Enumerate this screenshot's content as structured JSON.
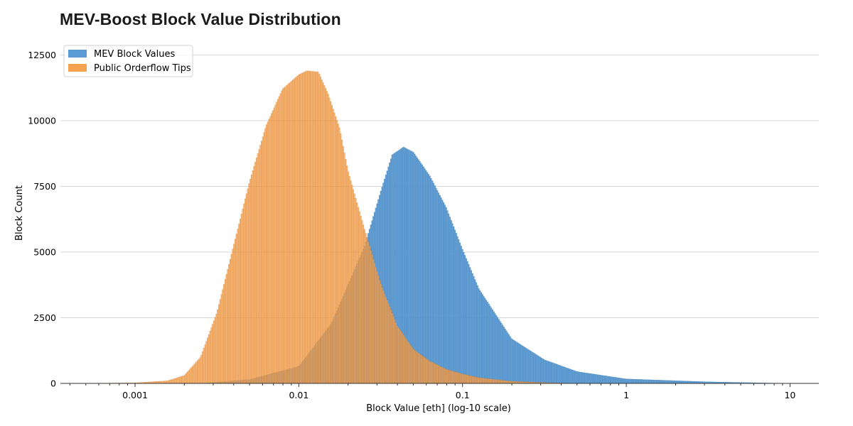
{
  "chart_data": {
    "type": "histogram",
    "title": "MEV-Boost Block Value Distribution",
    "xlabel": "Block Value [eth] (log-10 scale)",
    "ylabel": "Block Count",
    "xscale": "log10",
    "xlim": [
      0.00035,
      15
    ],
    "ylim": [
      0,
      12700
    ],
    "x_ticks": [
      {
        "value": 0.001,
        "label": "0.001"
      },
      {
        "value": 0.01,
        "label": "0.01"
      },
      {
        "value": 0.1,
        "label": "0.1"
      },
      {
        "value": 1,
        "label": "1"
      },
      {
        "value": 10,
        "label": "10"
      }
    ],
    "y_ticks": [
      {
        "value": 0,
        "label": "0"
      },
      {
        "value": 2500,
        "label": "2500"
      },
      {
        "value": 5000,
        "label": "5000"
      },
      {
        "value": 7500,
        "label": "7500"
      },
      {
        "value": 10000,
        "label": "10000"
      },
      {
        "value": 12500,
        "label": "12500"
      }
    ],
    "grid": "horizontal",
    "legend_position": "top-left",
    "series": [
      {
        "name": "MEV Block Values",
        "color": "#5b9bd5",
        "edge_color": "#2f6fa3",
        "log10_value_points": [
          -2.6,
          -2.3,
          -2.0,
          -1.8,
          -1.6,
          -1.5,
          -1.43,
          -1.36,
          -1.3,
          -1.2,
          -1.1,
          -1.0,
          -0.9,
          -0.7,
          -0.5,
          -0.3,
          0.0,
          0.5,
          1.0
        ],
        "counts": [
          0,
          150,
          650,
          2300,
          5200,
          7300,
          8700,
          9000,
          8800,
          7900,
          6700,
          5100,
          3600,
          1700,
          900,
          450,
          170,
          60,
          0
        ]
      },
      {
        "name": "Public Orderflow Tips",
        "color": "#f7a24f",
        "edge_color": "#c06d14",
        "log10_value_points": [
          -3.4,
          -3.0,
          -2.8,
          -2.7,
          -2.6,
          -2.5,
          -2.4,
          -2.3,
          -2.2,
          -2.1,
          -2.0,
          -1.95,
          -1.88,
          -1.82,
          -1.75,
          -1.7,
          -1.6,
          -1.5,
          -1.4,
          -1.3,
          -1.2,
          -1.1,
          -1.0,
          -0.9,
          -0.7,
          -0.5,
          -0.3
        ],
        "counts": [
          0,
          20,
          100,
          300,
          1000,
          2700,
          5200,
          7700,
          9800,
          11200,
          11750,
          11900,
          11850,
          11000,
          9700,
          8100,
          5900,
          3800,
          2200,
          1300,
          850,
          540,
          360,
          220,
          80,
          30,
          0
        ]
      }
    ]
  }
}
